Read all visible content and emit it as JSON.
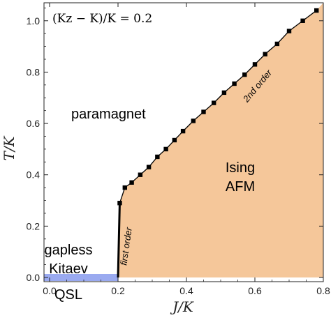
{
  "chart_data": {
    "type": "line",
    "title": "(K_z − K)/K = 0.2",
    "title_display": "(Kz − K)/K = 0.2",
    "xlabel": "J/K",
    "ylabel": "T/K",
    "xlim": [
      0,
      0.8
    ],
    "ylim": [
      0,
      1.07
    ],
    "xticks": [
      "0.0",
      "0.2",
      "0.4",
      "0.6",
      "0.8"
    ],
    "yticks": [
      "0.0",
      "0.2",
      "0.4",
      "0.6",
      "0.8",
      "1.0"
    ],
    "grid": false,
    "series": [
      {
        "name": "2nd order",
        "x": [
          0.205,
          0.22,
          0.24,
          0.265,
          0.29,
          0.315,
          0.34,
          0.365,
          0.39,
          0.42,
          0.45,
          0.48,
          0.51,
          0.54,
          0.57,
          0.6,
          0.63,
          0.665,
          0.7,
          0.74,
          0.78
        ],
        "y": [
          0.29,
          0.35,
          0.37,
          0.4,
          0.43,
          0.47,
          0.5,
          0.535,
          0.57,
          0.61,
          0.645,
          0.68,
          0.72,
          0.755,
          0.79,
          0.83,
          0.87,
          0.91,
          0.96,
          1.0,
          1.04
        ]
      },
      {
        "name": "first order",
        "x": [
          0.2,
          0.205
        ],
        "y": [
          0.0,
          0.29
        ]
      }
    ],
    "regions": [
      {
        "label": "paramagnet"
      },
      {
        "label": "Ising AFM",
        "lines": [
          "Ising",
          "AFM"
        ],
        "color": "#f5c79a"
      },
      {
        "label": "gapless Kitaev QSL",
        "lines": [
          "gapless",
          "Kitaev",
          "QSL"
        ],
        "color": "#9aaaf0"
      }
    ],
    "colors": {
      "afm_fill": "#f5c79a",
      "qsl_band": "#9aaaf0",
      "line": "#000000"
    }
  }
}
